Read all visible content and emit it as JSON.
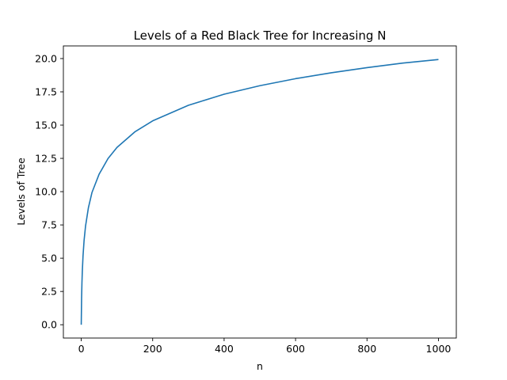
{
  "chart_data": {
    "type": "line",
    "title": "Levels of a Red Black Tree for Increasing N",
    "xlabel": "n",
    "ylabel": "Levels of Tree",
    "xlim": [
      -50,
      1050
    ],
    "ylim": [
      -1.0,
      20.95
    ],
    "xticks": [
      0,
      200,
      400,
      600,
      800,
      1000
    ],
    "xtick_labels": [
      "0",
      "200",
      "400",
      "600",
      "800",
      "1000"
    ],
    "yticks": [
      0.0,
      2.5,
      5.0,
      7.5,
      10.0,
      12.5,
      15.0,
      17.5,
      20.0
    ],
    "ytick_labels": [
      "0.0",
      "2.5",
      "5.0",
      "7.5",
      "10.0",
      "12.5",
      "15.0",
      "17.5",
      "20.0"
    ],
    "grid": false,
    "legend": "none",
    "series": [
      {
        "color": "#1f77b4",
        "x": [
          0,
          1,
          2,
          3,
          5,
          8,
          12,
          20,
          30,
          50,
          75,
          100,
          150,
          200,
          300,
          400,
          500,
          600,
          700,
          800,
          900,
          1000
        ],
        "y": [
          0,
          2.0,
          3.17,
          4.0,
          5.17,
          6.34,
          7.4,
          8.78,
          9.93,
          11.31,
          12.49,
          13.32,
          14.49,
          15.32,
          16.49,
          17.32,
          17.96,
          18.49,
          18.93,
          19.32,
          19.66,
          19.93
        ]
      }
    ]
  }
}
